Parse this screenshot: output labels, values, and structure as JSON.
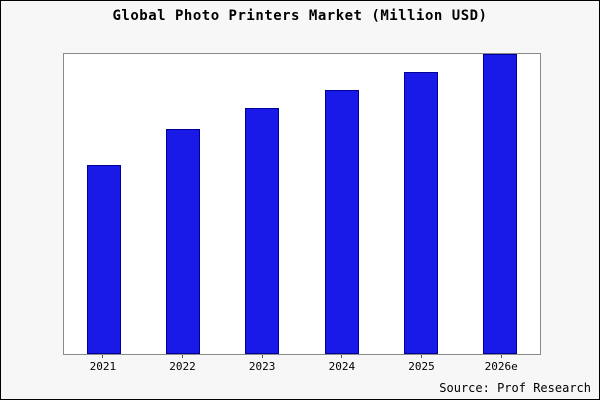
{
  "title": "Global Photo Printers Market (Million USD)",
  "source": "Source: Prof Research",
  "chart_data": {
    "type": "bar",
    "title": "Global Photo Printers Market (Million USD)",
    "categories": [
      "2021",
      "2022",
      "2023",
      "2024",
      "2025",
      "2026e"
    ],
    "values": [
      63,
      75,
      82,
      88,
      94,
      100
    ],
    "xlabel": "",
    "ylabel": "",
    "ylim": [
      0,
      100
    ],
    "grid": false,
    "legend_position": "none",
    "bar_color": "#1a1ae8",
    "bar_border_color": "#000099",
    "plot_background": "#ffffff",
    "outer_background": "#f7f7f7"
  }
}
